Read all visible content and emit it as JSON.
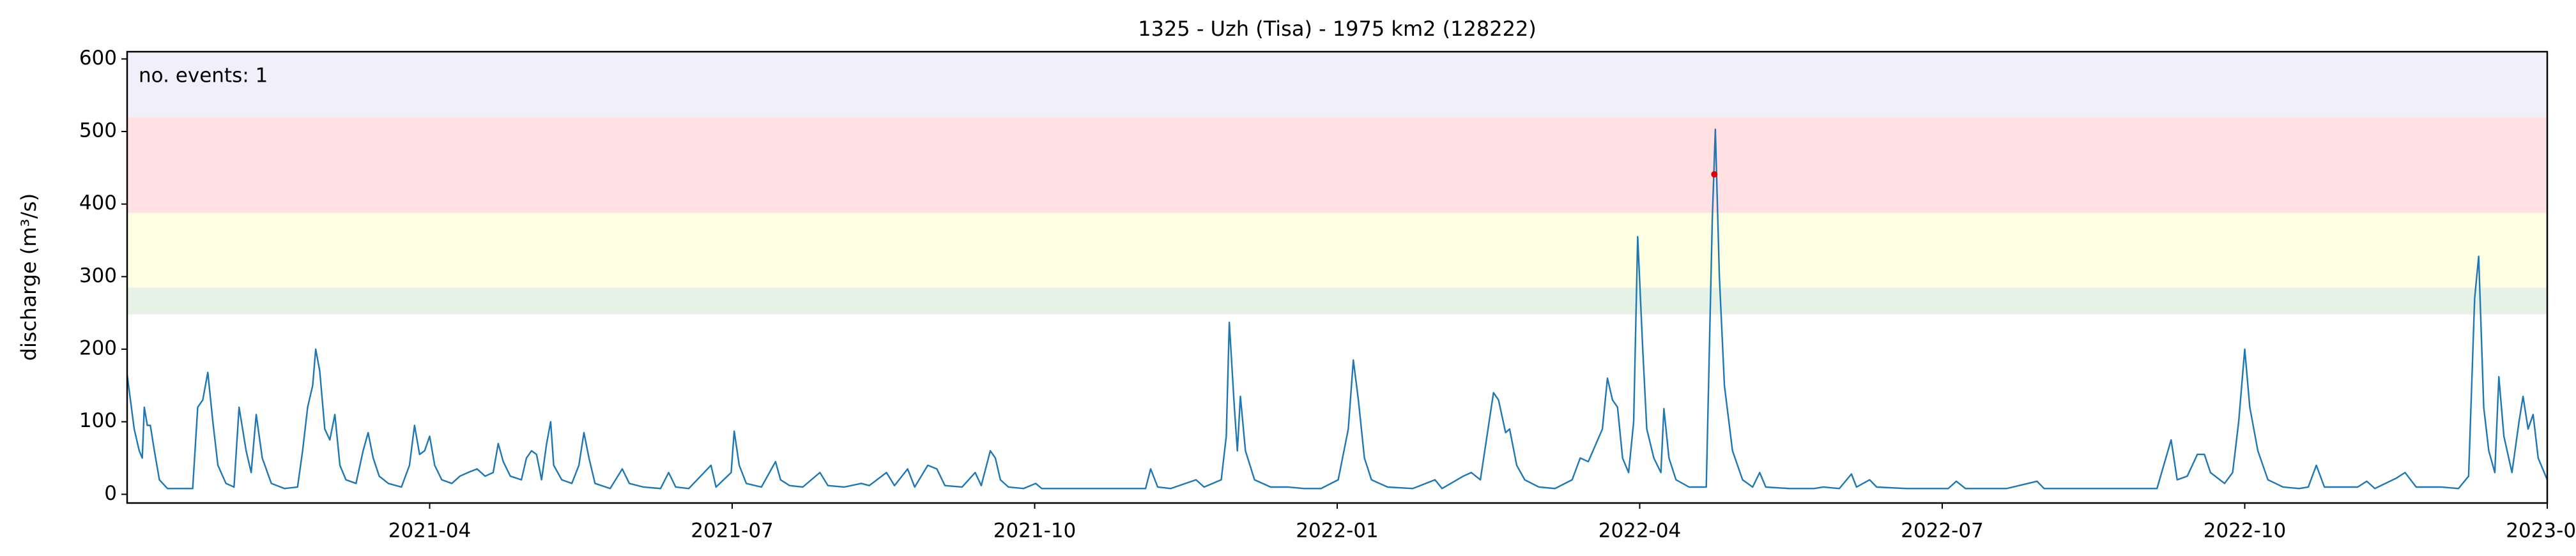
{
  "chart_data": {
    "type": "line",
    "title": "1325 - Uzh (Tisa) - 1975 km2 (128222)",
    "ylabel": "discharge (m³/s)",
    "annotation": "no. events: 1",
    "annotation_color": "#e00000",
    "color": "#1f77b4",
    "xlim": [
      0,
      24
    ],
    "xticks": [
      {
        "value": 3,
        "label": "2021-04"
      },
      {
        "value": 6,
        "label": "2021-07"
      },
      {
        "value": 9,
        "label": "2021-10"
      },
      {
        "value": 12,
        "label": "2022-01"
      },
      {
        "value": 15,
        "label": "2022-04"
      },
      {
        "value": 18,
        "label": "2022-07"
      },
      {
        "value": 21,
        "label": "2022-10"
      },
      {
        "value": 24,
        "label": "2023-01"
      }
    ],
    "ylim": [
      -12,
      610
    ],
    "yticks": [
      0,
      100,
      200,
      300,
      400,
      500,
      600
    ],
    "bands": [
      {
        "from": 248,
        "to": 285,
        "color": "#e5f2e5"
      },
      {
        "from": 285,
        "to": 388,
        "color": "#fefee3"
      },
      {
        "from": 388,
        "to": 520,
        "color": "#ffe1e4"
      },
      {
        "from": 520,
        "to": 610,
        "color": "#f1effa"
      }
    ],
    "events": {
      "x": [
        15.74
      ],
      "values": [
        441
      ],
      "color": "#e00000"
    },
    "x": [
      0.0,
      0.07,
      0.12,
      0.15,
      0.17,
      0.2,
      0.23,
      0.27,
      0.32,
      0.4,
      0.65,
      0.7,
      0.75,
      0.8,
      0.85,
      0.9,
      0.98,
      1.06,
      1.11,
      1.18,
      1.23,
      1.28,
      1.34,
      1.43,
      1.56,
      1.69,
      1.74,
      1.79,
      1.84,
      1.87,
      1.91,
      1.96,
      2.01,
      2.06,
      2.11,
      2.17,
      2.27,
      2.34,
      2.39,
      2.44,
      2.5,
      2.59,
      2.72,
      2.8,
      2.85,
      2.9,
      2.95,
      3.0,
      3.05,
      3.12,
      3.22,
      3.3,
      3.38,
      3.47,
      3.55,
      3.63,
      3.68,
      3.73,
      3.8,
      3.91,
      3.96,
      4.01,
      4.06,
      4.11,
      4.16,
      4.2,
      4.23,
      4.31,
      4.41,
      4.48,
      4.53,
      4.58,
      4.64,
      4.79,
      4.91,
      4.98,
      5.12,
      5.29,
      5.37,
      5.44,
      5.57,
      5.79,
      5.84,
      5.99,
      6.02,
      6.07,
      6.14,
      6.29,
      6.43,
      6.48,
      6.57,
      6.7,
      6.87,
      6.95,
      7.11,
      7.28,
      7.36,
      7.53,
      7.61,
      7.74,
      7.81,
      7.94,
      8.03,
      8.11,
      8.28,
      8.41,
      8.47,
      8.56,
      8.61,
      8.66,
      8.74,
      8.89,
      9.01,
      9.07,
      9.35,
      9.85,
      10.1,
      10.15,
      10.22,
      10.35,
      10.6,
      10.68,
      10.85,
      10.9,
      10.93,
      10.98,
      11.01,
      11.04,
      11.09,
      11.18,
      11.34,
      11.51,
      11.67,
      11.84,
      12.01,
      12.11,
      12.16,
      12.21,
      12.27,
      12.34,
      12.5,
      12.75,
      12.97,
      13.04,
      13.25,
      13.33,
      13.42,
      13.55,
      13.6,
      13.67,
      13.71,
      13.78,
      13.86,
      14.0,
      14.16,
      14.33,
      14.41,
      14.49,
      14.63,
      14.68,
      14.73,
      14.78,
      14.83,
      14.89,
      14.94,
      14.98,
      15.03,
      15.07,
      15.14,
      15.21,
      15.24,
      15.29,
      15.36,
      15.49,
      15.66,
      15.72,
      15.75,
      15.79,
      15.84,
      15.92,
      16.02,
      16.12,
      16.19,
      16.25,
      16.48,
      16.73,
      16.82,
      16.98,
      17.1,
      17.15,
      17.28,
      17.35,
      17.65,
      18.06,
      18.14,
      18.23,
      18.64,
      18.94,
      19.01,
      19.47,
      20.13,
      20.27,
      20.33,
      20.43,
      20.53,
      20.6,
      20.66,
      20.8,
      20.88,
      20.94,
      21.0,
      21.05,
      21.13,
      21.23,
      21.38,
      21.54,
      21.63,
      21.71,
      21.79,
      22.12,
      22.21,
      22.29,
      22.5,
      22.59,
      22.7,
      22.95,
      23.12,
      23.22,
      23.28,
      23.32,
      23.37,
      23.42,
      23.48,
      23.52,
      23.57,
      23.65,
      23.72,
      23.76,
      23.81,
      23.86,
      23.91,
      24.0
    ],
    "values": [
      165,
      90,
      60,
      50,
      120,
      95,
      95,
      60,
      20,
      8,
      8,
      120,
      130,
      168,
      100,
      40,
      15,
      10,
      120,
      60,
      30,
      110,
      50,
      15,
      8,
      10,
      60,
      120,
      150,
      200,
      170,
      90,
      75,
      110,
      40,
      20,
      15,
      60,
      85,
      50,
      25,
      15,
      10,
      40,
      95,
      55,
      60,
      80,
      40,
      20,
      15,
      25,
      30,
      35,
      25,
      30,
      70,
      45,
      25,
      20,
      50,
      60,
      55,
      20,
      70,
      100,
      40,
      20,
      15,
      40,
      85,
      50,
      15,
      8,
      35,
      15,
      10,
      8,
      30,
      10,
      8,
      40,
      10,
      30,
      87,
      40,
      15,
      10,
      45,
      20,
      12,
      10,
      30,
      12,
      10,
      15,
      12,
      30,
      12,
      35,
      10,
      40,
      35,
      12,
      10,
      30,
      12,
      60,
      50,
      20,
      10,
      8,
      15,
      8,
      8,
      8,
      8,
      35,
      10,
      8,
      20,
      10,
      20,
      80,
      237,
      120,
      60,
      135,
      60,
      20,
      10,
      10,
      8,
      8,
      20,
      90,
      185,
      130,
      50,
      20,
      10,
      8,
      20,
      8,
      25,
      30,
      20,
      140,
      130,
      85,
      90,
      40,
      20,
      10,
      8,
      20,
      50,
      45,
      90,
      160,
      130,
      120,
      50,
      30,
      100,
      355,
      200,
      90,
      50,
      30,
      118,
      50,
      20,
      10,
      10,
      380,
      503,
      300,
      150,
      60,
      20,
      10,
      30,
      10,
      8,
      8,
      10,
      8,
      28,
      10,
      20,
      10,
      8,
      8,
      18,
      8,
      8,
      18,
      8,
      8,
      8,
      75,
      20,
      25,
      55,
      55,
      30,
      15,
      30,
      100,
      200,
      120,
      60,
      20,
      10,
      8,
      10,
      40,
      10,
      10,
      18,
      8,
      22,
      30,
      10,
      10,
      8,
      25,
      270,
      328,
      120,
      60,
      30,
      162,
      80,
      30,
      100,
      135,
      90,
      110,
      50,
      20
    ]
  }
}
